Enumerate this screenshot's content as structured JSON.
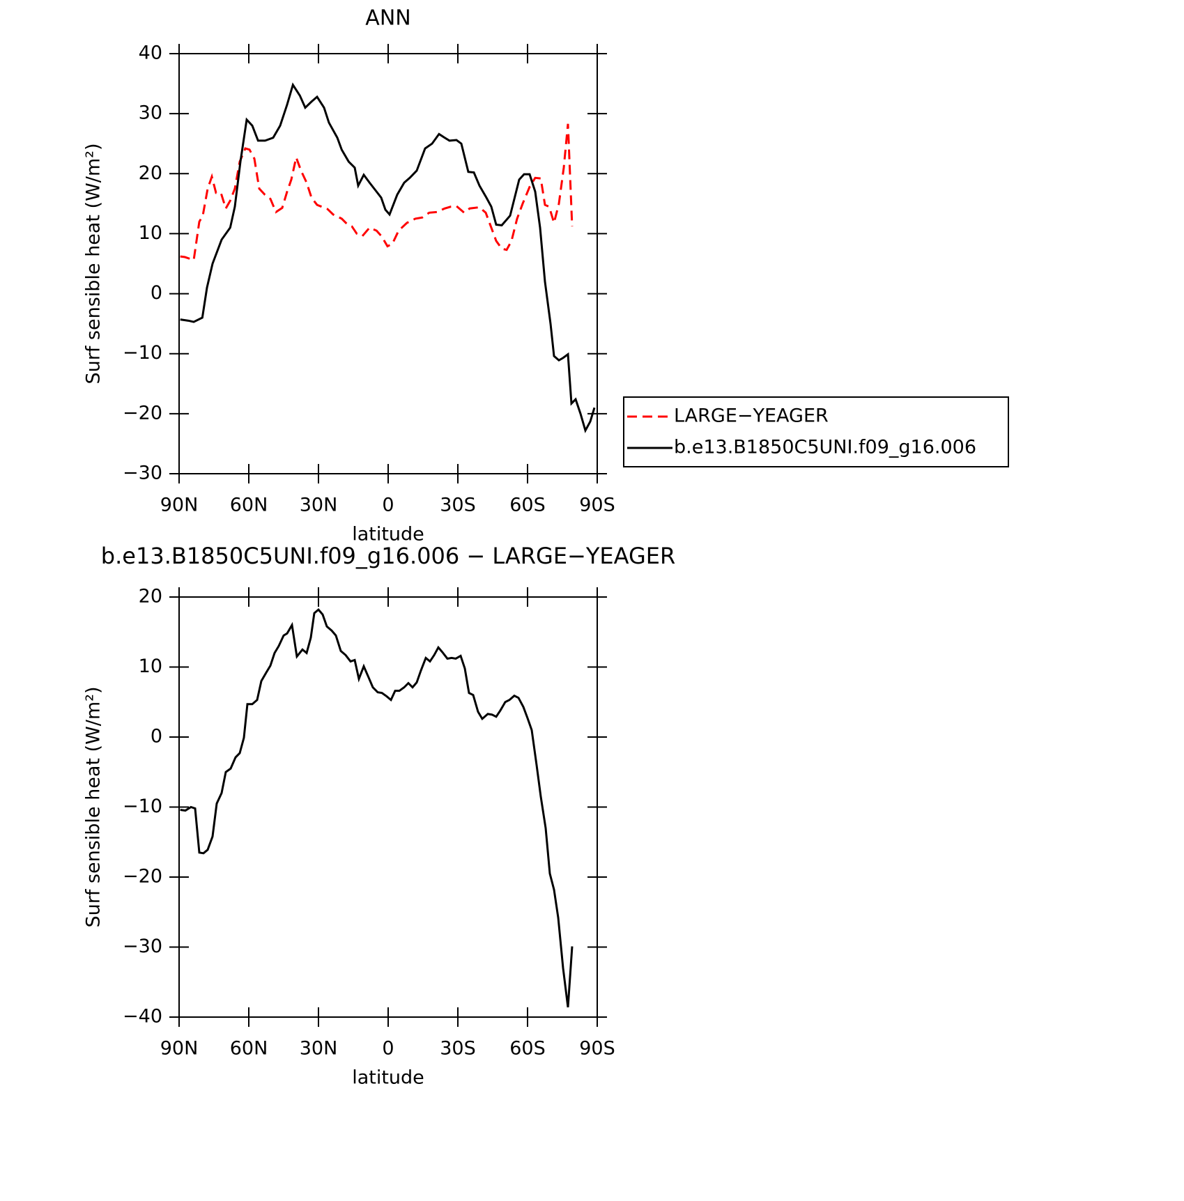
{
  "chart_data": [
    {
      "type": "line",
      "title": "ANN",
      "xlabel": "latitude",
      "ylabel": "Surf sensible heat (W/m²)",
      "xlim": [
        90,
        -90
      ],
      "xticks": [
        {
          "value": 90,
          "label": "90N"
        },
        {
          "value": 60,
          "label": "60N"
        },
        {
          "value": 30,
          "label": "30N"
        },
        0,
        {
          "value": -30,
          "label": "30S"
        },
        {
          "value": -60,
          "label": "60S"
        },
        {
          "value": -90,
          "label": "90S"
        }
      ],
      "ylim": [
        -30,
        40
      ],
      "yticks": [
        -30,
        -20,
        -10,
        0,
        10,
        20,
        30,
        40
      ],
      "legend": "right",
      "series": [
        {
          "name": "LARGE−YEAGER",
          "color": "#ff0000",
          "style": "dashed",
          "x": [
            89.5,
            87.5,
            83.7,
            81.3,
            79.8,
            77.7,
            75.9,
            74.1,
            72,
            69.9,
            68,
            66,
            63.9,
            61.5,
            59.7,
            57.6,
            55.5,
            53.1,
            50.7,
            48.3,
            45.6,
            43.5,
            41.7,
            39.6,
            37.5,
            35.1,
            33,
            30.6,
            26.1,
            23.7,
            20,
            17.7,
            15.6,
            13.5,
            11.1,
            8,
            5,
            2.7,
            0.3,
            -1.8,
            -4.5,
            -8.1,
            -11.7,
            -14.7,
            -17.7,
            -21,
            -24.3,
            -27,
            -29.4,
            -32.7,
            -35.1,
            -39.3,
            -42,
            -44.4,
            -46.5,
            -48.9,
            -51,
            -53.1,
            -55.5,
            -57.9,
            -60.9,
            -63.3,
            -65.7,
            -67.5,
            -69.3,
            -71.4,
            -73.5,
            -75.6,
            -77.4,
            -79.2
          ],
          "values": [
            6.2,
            6.1,
            5.6,
            12,
            13,
            17.5,
            19.5,
            16.8,
            16.8,
            14.2,
            15.5,
            17.5,
            22,
            24.2,
            24,
            22.5,
            17.5,
            16.5,
            15.8,
            13.6,
            14.3,
            17,
            19,
            22.7,
            20.5,
            18.5,
            16,
            14.8,
            14.1,
            13.2,
            12.5,
            11.6,
            11.2,
            10,
            9.6,
            11,
            10.5,
            9.5,
            7.9,
            8.3,
            10.5,
            11.8,
            12.5,
            12.7,
            13.5,
            13.6,
            14.2,
            14.5,
            14.6,
            13.5,
            14.2,
            14.4,
            13.5,
            11,
            8.8,
            7.5,
            7.3,
            8.8,
            12.5,
            15,
            17.8,
            19.3,
            19.2,
            14.8,
            14.5,
            11.8,
            15,
            21,
            28.3,
            11.2
          ]
        },
        {
          "name": "b.e13.B1850C5UNI.f09_g16.006",
          "color": "#000000",
          "style": "solid",
          "x": [
            89.5,
            86,
            83.7,
            80,
            78,
            75.6,
            71.7,
            68,
            66,
            63.6,
            60.9,
            58.5,
            56,
            53,
            49.5,
            46.5,
            43.5,
            41,
            38,
            35.7,
            33,
            30.6,
            27.6,
            25.5,
            21.9,
            20,
            17,
            14.4,
            12.9,
            10.5,
            8,
            5,
            3,
            1.2,
            -0.6,
            -3.9,
            -6.9,
            -9.3,
            -12.3,
            -15.9,
            -18.9,
            -21.9,
            -24.3,
            -26.4,
            -29.4,
            -31.5,
            -34.5,
            -36.9,
            -39.3,
            -42.3,
            -44.4,
            -46.5,
            -48.9,
            -52.5,
            -56.4,
            -58.5,
            -60.9,
            -63.3,
            -65.4,
            -67.5,
            -69.9,
            -71.4,
            -73.5,
            -75.3,
            -77.4,
            -78.9,
            -80.7,
            -82.8,
            -84.9,
            -87,
            -88.8
          ],
          "values": [
            -4.3,
            -4.5,
            -4.7,
            -4,
            1,
            5,
            9,
            11,
            14.5,
            22,
            29,
            28,
            25.5,
            25.5,
            26,
            28,
            31.5,
            34.8,
            33,
            31,
            32,
            32.8,
            31,
            28.5,
            26,
            24,
            22,
            21,
            18,
            19.8,
            18.5,
            17,
            16,
            14,
            13.2,
            16.5,
            18.5,
            19.3,
            20.5,
            24.2,
            25,
            26.6,
            26,
            25.5,
            25.6,
            25,
            20.3,
            20.2,
            18,
            16,
            14.5,
            11.5,
            11.4,
            13,
            19,
            19.9,
            19.9,
            17,
            11,
            2,
            -5,
            -10.4,
            -11.1,
            -10.7,
            -10.1,
            -18.3,
            -17.6,
            -20,
            -22.8,
            -21.3,
            -19
          ]
        }
      ]
    },
    {
      "type": "line",
      "title": "b.e13.B1850C5UNI.f09_g16.006 − LARGE−YEAGER",
      "xlabel": "latitude",
      "ylabel": "Surf sensible heat (W/m²)",
      "xlim": [
        90,
        -90
      ],
      "xticks": [
        {
          "value": 90,
          "label": "90N"
        },
        {
          "value": 60,
          "label": "60N"
        },
        {
          "value": 30,
          "label": "30N"
        },
        0,
        {
          "value": -30,
          "label": "30S"
        },
        {
          "value": -60,
          "label": "60S"
        },
        {
          "value": -90,
          "label": "90S"
        }
      ],
      "ylim": [
        -40,
        20
      ],
      "yticks": [
        -40,
        -30,
        -20,
        -10,
        0,
        10,
        20
      ],
      "color": "#000000",
      "x": [
        89.5,
        87.3,
        84.9,
        83.1,
        81.3,
        79.5,
        77.7,
        75.6,
        73.8,
        71.7,
        69.9,
        67.8,
        65.7,
        63.9,
        62.1,
        60.6,
        58.5,
        56.4,
        54.6,
        52.5,
        50.7,
        48.9,
        47.1,
        45,
        43.5,
        41.4,
        39.3,
        36.9,
        35.1,
        33.3,
        31.8,
        30,
        28.2,
        26.4,
        24.3,
        22.5,
        20.4,
        18.3,
        16.2,
        14.4,
        12.6,
        10.5,
        8.4,
        6.6,
        4.5,
        2.7,
        0.6,
        -1.2,
        -3,
        -4.8,
        -6.9,
        -8.7,
        -10.5,
        -12.3,
        -14.1,
        -16.2,
        -18,
        -19.8,
        -21.6,
        -23.4,
        -25.5,
        -27.3,
        -29.1,
        -31.2,
        -33,
        -34.8,
        -36.6,
        -38.7,
        -40.5,
        -42.9,
        -44.7,
        -46.5,
        -48.3,
        -50.4,
        -52.2,
        -54.3,
        -56.1,
        -58.2,
        -60,
        -61.8,
        -63.9,
        -65.7,
        -67.8,
        -69.6,
        -71.4,
        -73.2,
        -75.3,
        -77.4,
        -79.2
      ],
      "values": [
        -10.4,
        -10.5,
        -10,
        -10.2,
        -16.5,
        -16.6,
        -16.1,
        -14.2,
        -9.5,
        -8,
        -5,
        -4.5,
        -2.9,
        -2.3,
        -0.1,
        4.7,
        4.7,
        5.3,
        8,
        9.2,
        10.2,
        12,
        13,
        14.5,
        14.8,
        16,
        11.5,
        12.5,
        12,
        14.2,
        17.7,
        18.2,
        17.5,
        15.8,
        15.2,
        14.5,
        12.3,
        11.7,
        10.8,
        11,
        8.3,
        10.1,
        8.5,
        7.1,
        6.4,
        6.3,
        5.8,
        5.3,
        6.6,
        6.6,
        7.1,
        7.7,
        7.1,
        7.8,
        9.5,
        11.3,
        10.8,
        11.7,
        12.8,
        12.1,
        11.2,
        11.3,
        11.2,
        11.6,
        9.8,
        6.3,
        6,
        3.6,
        2.6,
        3.3,
        3.2,
        2.9,
        3.8,
        5,
        5.3,
        5.9,
        5.6,
        4.3,
        2.7,
        1,
        -4,
        -8.5,
        -13,
        -19.5,
        -21.8,
        -25.8,
        -33,
        -38.6,
        -29.9
      ]
    }
  ]
}
